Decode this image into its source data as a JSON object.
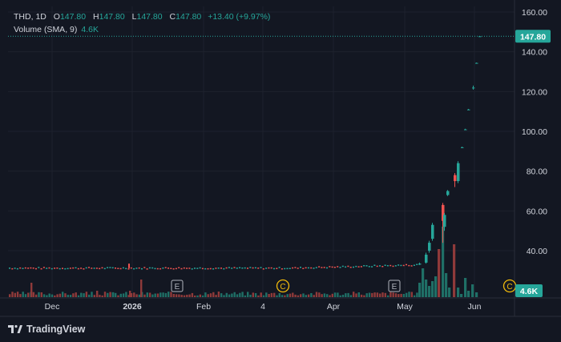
{
  "legend": {
    "symbol": "THD",
    "interval": "1D",
    "open_label": "O",
    "open": "147.80",
    "high_label": "H",
    "high": "147.80",
    "low_label": "L",
    "low": "147.80",
    "close_label": "C",
    "close": "147.80",
    "change": "+13.40 (+9.97%)",
    "volume_label": "Volume (SMA, 9)",
    "volume_value": "4.6K"
  },
  "price_label": "147.80",
  "volume_label_badge": "4.6K",
  "footer": {
    "brand": "TradingView"
  },
  "colors": {
    "background": "#131722",
    "up": "#26a69a",
    "down": "#ef5350",
    "grid": "#1e222d",
    "text": "#d1d4dc"
  },
  "chart_data": {
    "type": "candlestick",
    "y_axis": {
      "range": [
        30,
        160
      ],
      "ticks": [
        "160.00",
        "140.00",
        "120.00",
        "100.00",
        "80.00",
        "60.00",
        "40.00"
      ],
      "position": "right"
    },
    "x_axis": {
      "ticks": [
        "Dec",
        "2026",
        "Feb",
        "4",
        "Apr",
        "May",
        "Jun"
      ]
    },
    "grid": true,
    "last_price": 147.8,
    "events": [
      {
        "x": "Jan 26",
        "label": "E"
      },
      {
        "x": "Mar 6",
        "label": "C"
      },
      {
        "x": "Apr 30",
        "label": "E"
      },
      {
        "x": "Jun 14",
        "label": "C"
      }
    ],
    "price_series": [
      {
        "date": "Nov",
        "open": 32.5,
        "close": 32.2,
        "high": 32.8,
        "low": 31.9
      },
      {
        "date": "Dec",
        "open": 31.5,
        "close": 31.3,
        "high": 31.8,
        "low": 31.0
      },
      {
        "date": "2026",
        "open": 31.8,
        "close": 31.2,
        "high": 33.5,
        "low": 31.0
      },
      {
        "date": "Feb",
        "open": 31.2,
        "close": 31.5,
        "high": 31.8,
        "low": 31.0
      },
      {
        "date": "Mar",
        "open": 31.5,
        "close": 31.3,
        "high": 31.8,
        "low": 31.0
      },
      {
        "date": "Apr",
        "open": 32.0,
        "close": 32.3,
        "high": 32.6,
        "low": 31.8
      },
      {
        "date": "May 4",
        "open": 33.0,
        "close": 33.5,
        "high": 34.0,
        "low": 32.8
      },
      {
        "date": "May 8",
        "open": 34.0,
        "close": 38.0,
        "high": 39.0,
        "low": 33.5
      },
      {
        "date": "May 12",
        "open": 40.0,
        "close": 44.0,
        "high": 45.0,
        "low": 39.0
      },
      {
        "date": "May 14",
        "open": 46.0,
        "close": 53.0,
        "high": 54.0,
        "low": 45.0
      },
      {
        "date": "May 18",
        "open": 63.0,
        "close": 55.0,
        "high": 64.0,
        "low": 44.0
      },
      {
        "date": "May 19",
        "open": 52.0,
        "close": 58.0,
        "high": 59.0,
        "low": 50.0
      },
      {
        "date": "May 21",
        "open": 68.0,
        "close": 70.0,
        "high": 70.5,
        "low": 67.5
      },
      {
        "date": "May 22",
        "open": 78.0,
        "close": 75.0,
        "high": 79.0,
        "low": 72.0
      },
      {
        "date": "May 25",
        "open": 75.0,
        "close": 84.0,
        "high": 85.0,
        "low": 74.0
      },
      {
        "date": "May 26",
        "open": 92.0,
        "close": 92.0,
        "high": 92.3,
        "low": 91.7
      },
      {
        "date": "May 27",
        "open": 101.0,
        "close": 101.0,
        "high": 101.3,
        "low": 100.7
      },
      {
        "date": "May 28",
        "open": 111.0,
        "close": 111.0,
        "high": 111.3,
        "low": 110.7
      },
      {
        "date": "May 29",
        "open": 122.0,
        "close": 122.0,
        "high": 123.0,
        "low": 121.0
      },
      {
        "date": "Jun 1",
        "open": 134.4,
        "close": 134.4,
        "high": 134.6,
        "low": 134.2
      },
      {
        "date": "Jun 2",
        "open": 147.8,
        "close": 147.8,
        "high": 147.8,
        "low": 147.8
      }
    ]
  }
}
